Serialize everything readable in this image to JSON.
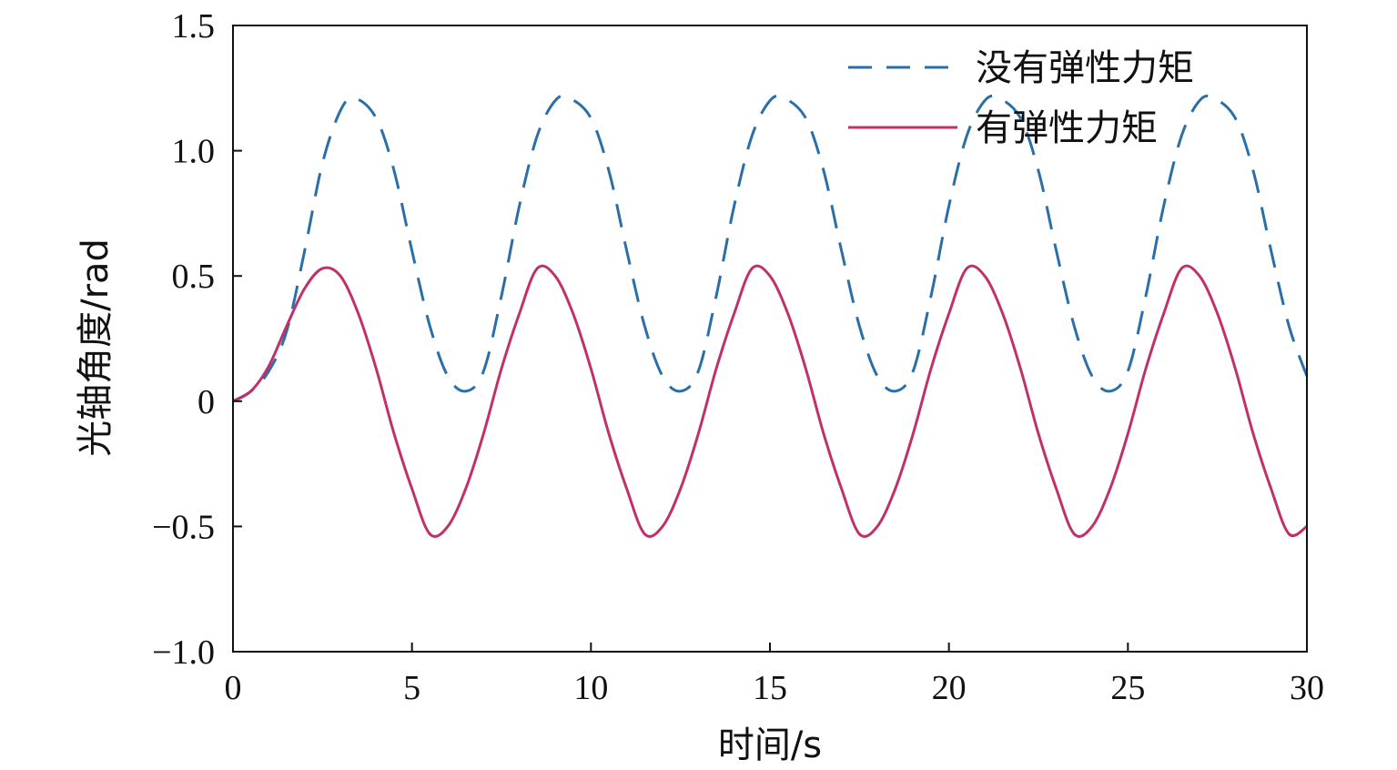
{
  "chart_data": {
    "type": "line",
    "title": "",
    "xlabel": "时间/s",
    "ylabel": "光轴角度/rad",
    "xlim": [
      0,
      30
    ],
    "ylim": [
      -1.0,
      1.5
    ],
    "x_ticks": [
      0,
      5,
      10,
      15,
      20,
      25,
      30
    ],
    "x_tick_labels": [
      "0",
      "5",
      "10",
      "15",
      "20",
      "25",
      "30"
    ],
    "y_ticks": [
      -1.0,
      -0.5,
      0,
      0.5,
      1.0,
      1.5
    ],
    "y_tick_labels": [
      "−1.0",
      "−0.5",
      "0",
      "0.5",
      "1.0",
      "1.5"
    ],
    "grid": false,
    "legend_position": "top-right",
    "series": [
      {
        "name": "没有弹性力矩",
        "style": "dashed",
        "color": "#2a6fa8",
        "x": [
          0,
          0.5,
          1.0,
          1.5,
          2.0,
          2.5,
          3.0,
          3.4,
          4.0,
          4.5,
          5.0,
          5.5,
          6.0,
          6.5,
          7.0,
          7.5,
          8.0,
          8.5,
          9.0,
          9.4,
          10.0,
          10.5,
          11.0,
          11.5,
          12.0,
          12.5,
          13.0,
          13.5,
          14.0,
          14.5,
          15.0,
          15.4,
          16.0,
          16.5,
          17.0,
          17.5,
          18.0,
          18.5,
          19.0,
          19.5,
          20.0,
          20.5,
          21.0,
          21.4,
          22.0,
          22.5,
          23.0,
          23.5,
          24.0,
          24.5,
          25.0,
          25.5,
          26.0,
          26.5,
          27.0,
          27.4,
          28.0,
          28.5,
          29.0,
          29.5,
          30.0
        ],
        "y": [
          0.0,
          0.04,
          0.12,
          0.28,
          0.6,
          0.95,
          1.16,
          1.21,
          1.13,
          0.92,
          0.6,
          0.3,
          0.1,
          0.04,
          0.12,
          0.42,
          0.78,
          1.06,
          1.2,
          1.21,
          1.13,
          0.92,
          0.6,
          0.3,
          0.1,
          0.04,
          0.12,
          0.42,
          0.78,
          1.06,
          1.2,
          1.21,
          1.13,
          0.92,
          0.6,
          0.3,
          0.1,
          0.04,
          0.12,
          0.42,
          0.78,
          1.06,
          1.2,
          1.21,
          1.13,
          0.92,
          0.6,
          0.3,
          0.1,
          0.04,
          0.12,
          0.42,
          0.78,
          1.06,
          1.2,
          1.21,
          1.13,
          0.92,
          0.6,
          0.3,
          0.1
        ]
      },
      {
        "name": "有弹性力矩",
        "style": "solid",
        "color": "#c0306a",
        "x": [
          0,
          0.5,
          1.0,
          1.5,
          2.0,
          2.5,
          3.0,
          3.5,
          4.0,
          4.5,
          5.0,
          5.5,
          6.0,
          6.5,
          7.0,
          7.5,
          8.0,
          8.5,
          9.0,
          9.5,
          10.0,
          10.5,
          11.0,
          11.5,
          12.0,
          12.5,
          13.0,
          13.5,
          14.0,
          14.5,
          15.0,
          15.5,
          16.0,
          16.5,
          17.0,
          17.5,
          18.0,
          18.5,
          19.0,
          19.5,
          20.0,
          20.5,
          21.0,
          21.5,
          22.0,
          22.5,
          23.0,
          23.5,
          24.0,
          24.5,
          25.0,
          25.5,
          26.0,
          26.5,
          27.0,
          27.5,
          28.0,
          28.5,
          29.0,
          29.5,
          30.0
        ],
        "y": [
          0.0,
          0.04,
          0.14,
          0.3,
          0.45,
          0.53,
          0.5,
          0.35,
          0.13,
          -0.13,
          -0.35,
          -0.53,
          -0.5,
          -0.35,
          -0.13,
          0.13,
          0.35,
          0.53,
          0.5,
          0.35,
          0.13,
          -0.13,
          -0.35,
          -0.53,
          -0.5,
          -0.35,
          -0.13,
          0.13,
          0.35,
          0.53,
          0.5,
          0.35,
          0.13,
          -0.13,
          -0.35,
          -0.53,
          -0.5,
          -0.35,
          -0.13,
          0.13,
          0.35,
          0.53,
          0.5,
          0.35,
          0.13,
          -0.13,
          -0.35,
          -0.53,
          -0.5,
          -0.35,
          -0.13,
          0.13,
          0.35,
          0.53,
          0.5,
          0.35,
          0.13,
          -0.13,
          -0.35,
          -0.53,
          -0.5
        ]
      }
    ]
  }
}
